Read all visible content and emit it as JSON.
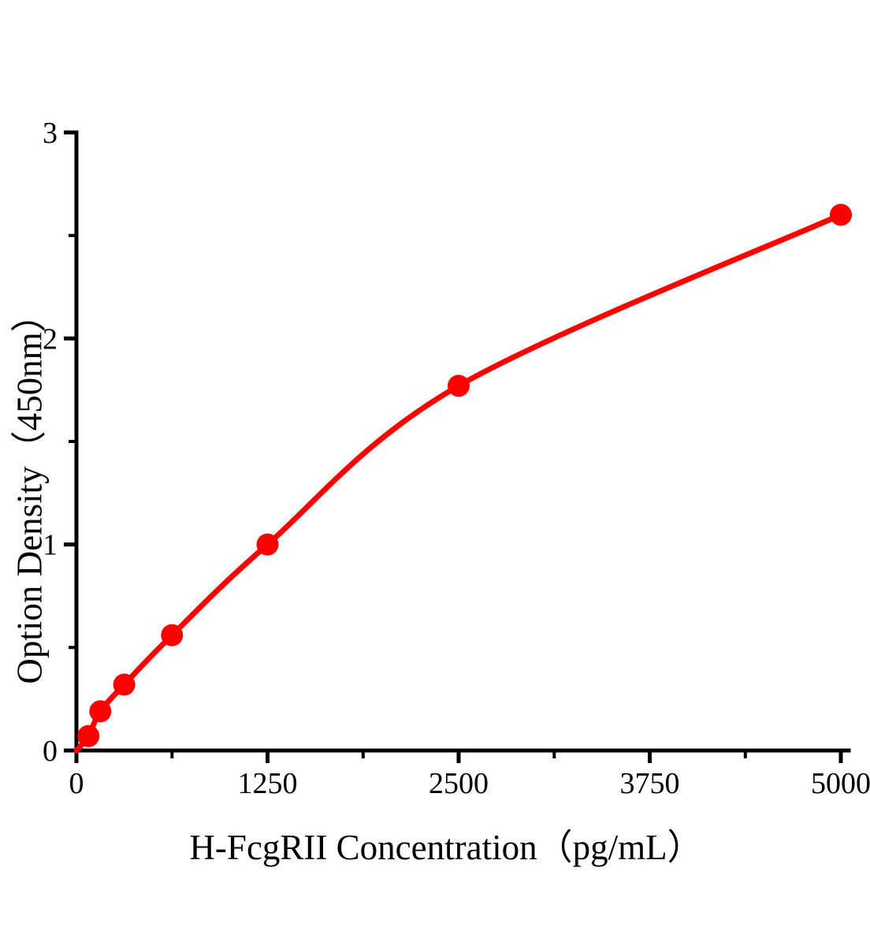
{
  "figure": {
    "background_color": "#FFFFFF",
    "description": "ELISA standard curve plot with red fitted curve and red circular data points on black L-shaped axes"
  },
  "chart_data": {
    "type": "scatter",
    "curve": "smooth saturating fit through all points, starting at the origin",
    "title": "",
    "xlabel": "H-FcgRII Concentration（pg/mL）",
    "ylabel": "Option Density（450nm）",
    "xlim": [
      0,
      5000
    ],
    "ylim": [
      0,
      3
    ],
    "grid": false,
    "legend": false,
    "x_major_ticks": [
      0,
      1250,
      2500,
      3750,
      5000
    ],
    "x_tick_labels": [
      "0",
      "1250",
      "2500",
      "3750",
      "5000"
    ],
    "x_minor_ticks": [
      625,
      1875,
      3125,
      4375
    ],
    "y_major_ticks": [
      0,
      1,
      2,
      3
    ],
    "y_tick_labels": [
      "0",
      "1",
      "2",
      "3"
    ],
    "y_minor_ticks": [
      0.5,
      1.5,
      2.5
    ],
    "curve_start": {
      "x": 0,
      "od": 0
    },
    "points": [
      {
        "x": 78.125,
        "od": 0.07
      },
      {
        "x": 156.25,
        "od": 0.19
      },
      {
        "x": 312.5,
        "od": 0.32
      },
      {
        "x": 625,
        "od": 0.56
      },
      {
        "x": 1250,
        "od": 1.0
      },
      {
        "x": 2500,
        "od": 1.77
      },
      {
        "x": 5000,
        "od": 2.6
      }
    ],
    "colors": {
      "curve": "#FF0000",
      "marker": "#FF0000",
      "axis": "#000000",
      "text": "#000000"
    }
  }
}
